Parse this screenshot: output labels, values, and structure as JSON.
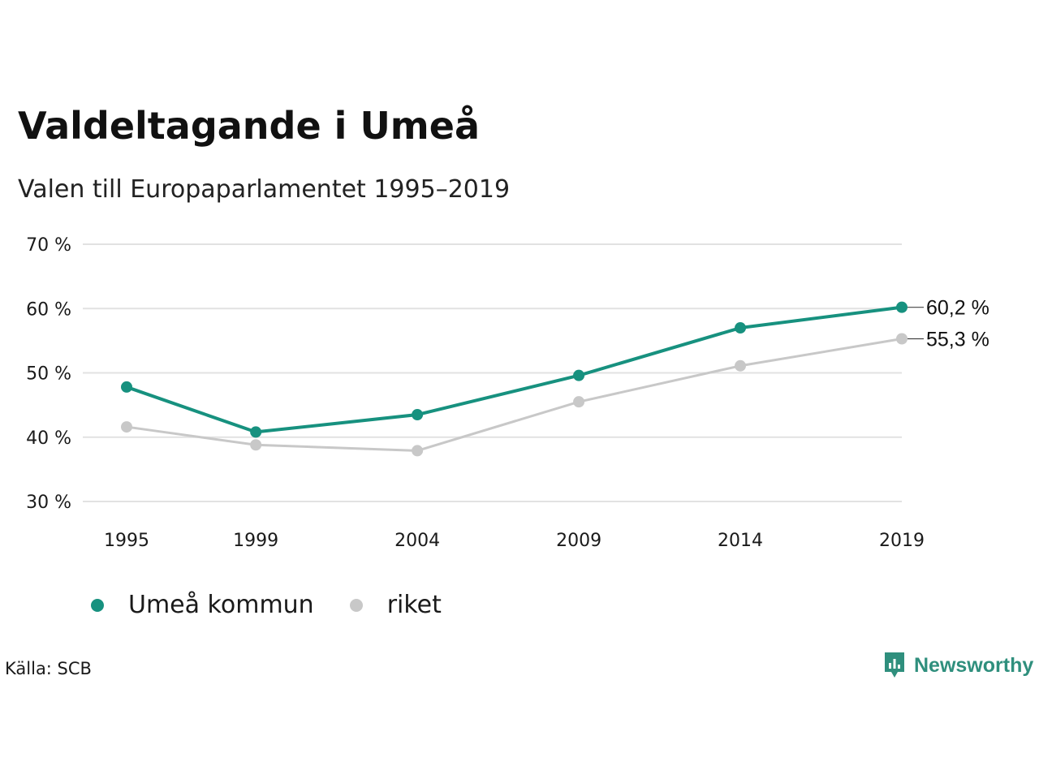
{
  "header": {
    "title": "Valdeltagande i Umeå",
    "subtitle": "Valen till Europaparlamentet 1995–2019"
  },
  "footer": {
    "source": "Källa: SCB",
    "brand": "Newsworthy"
  },
  "colors": {
    "umea": "#17917f",
    "riket": "#c8c8c8",
    "grid": "#e2e2e2",
    "brand": "#2f8f7d"
  },
  "icons": {
    "brand_logo": "newsworthy-chart-bubble-icon"
  },
  "chart_data": {
    "type": "line",
    "categories": [
      "1995",
      "1999",
      "2004",
      "2009",
      "2014",
      "2019"
    ],
    "x": [
      1995,
      1999,
      2004,
      2009,
      2014,
      2019
    ],
    "ylim": [
      30,
      70
    ],
    "yticks": [
      30,
      40,
      50,
      60,
      70
    ],
    "ytick_labels": [
      "30 %",
      "40 %",
      "50 %",
      "60 %",
      "70 %"
    ],
    "grid": true,
    "legend_position": "bottom-left",
    "series": [
      {
        "name": "Umeå kommun",
        "color": "#17917f",
        "values": [
          47.8,
          40.8,
          43.5,
          49.6,
          57.0,
          60.2
        ],
        "end_label": "60,2 %"
      },
      {
        "name": "riket",
        "color": "#c8c8c8",
        "values": [
          41.6,
          38.8,
          37.9,
          45.5,
          51.1,
          55.3
        ],
        "end_label": "55,3 %"
      }
    ]
  }
}
